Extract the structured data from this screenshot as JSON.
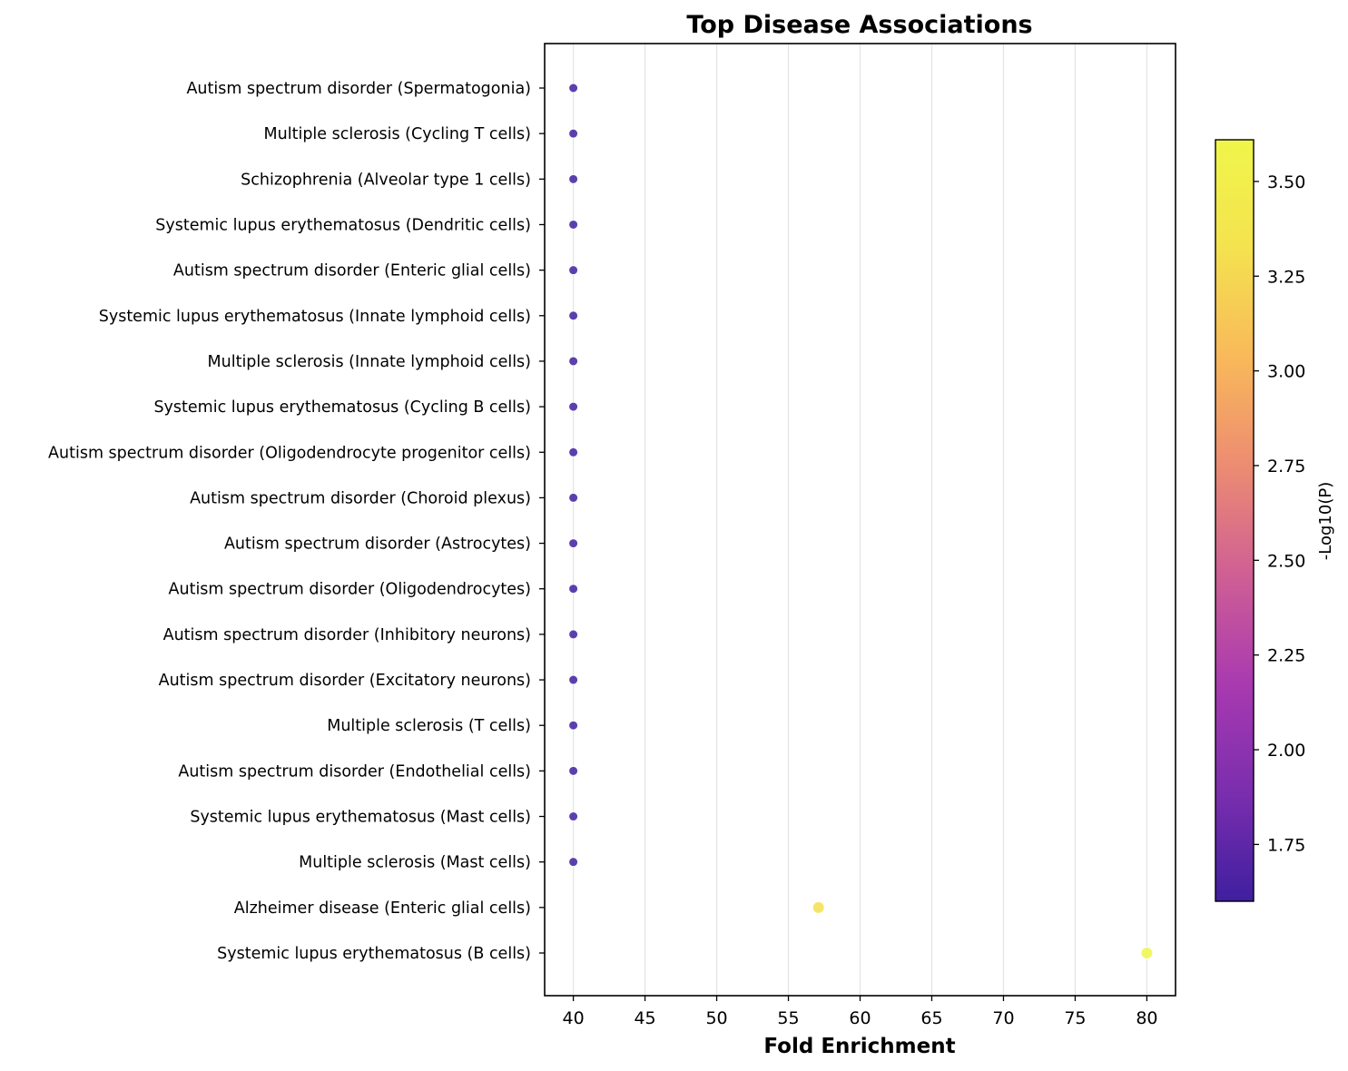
{
  "chart_data": {
    "type": "scatter",
    "title": "Top Disease Associations",
    "xlabel": "Fold Enrichment",
    "ylabel": "",
    "xlim": [
      38,
      82
    ],
    "xticks": [
      40,
      45,
      50,
      55,
      60,
      65,
      70,
      75,
      80
    ],
    "grid": "vertical",
    "colormap": "plasma",
    "colorbar": {
      "label": "-Log10(P)",
      "range": [
        1.6,
        3.61
      ],
      "ticks": [
        "1.75",
        "2.00",
        "2.25",
        "2.50",
        "2.75",
        "3.00",
        "3.25",
        "3.50"
      ],
      "gradient": [
        "#3f1fa0",
        "#7a2eae",
        "#a93ab0",
        "#cf5f94",
        "#ec8c72",
        "#f9b95a",
        "#f4e24f",
        "#f0f64a"
      ]
    },
    "points": [
      {
        "label": "Autism spectrum disorder (Spermatogonia)",
        "x": 40.0,
        "neglog10p": 1.6
      },
      {
        "label": "Multiple sclerosis (Cycling T cells)",
        "x": 40.0,
        "neglog10p": 1.6
      },
      {
        "label": "Schizophrenia (Alveolar type 1 cells)",
        "x": 40.0,
        "neglog10p": 1.6
      },
      {
        "label": "Systemic lupus erythematosus (Dendritic cells)",
        "x": 40.0,
        "neglog10p": 1.6
      },
      {
        "label": "Autism spectrum disorder (Enteric glial cells)",
        "x": 40.0,
        "neglog10p": 1.6
      },
      {
        "label": "Systemic lupus erythematosus (Innate lymphoid cells)",
        "x": 40.0,
        "neglog10p": 1.6
      },
      {
        "label": "Multiple sclerosis (Innate lymphoid cells)",
        "x": 40.0,
        "neglog10p": 1.6
      },
      {
        "label": "Systemic lupus erythematosus (Cycling B cells)",
        "x": 40.0,
        "neglog10p": 1.6
      },
      {
        "label": "Autism spectrum disorder (Oligodendrocyte progenitor cells)",
        "x": 40.0,
        "neglog10p": 1.6
      },
      {
        "label": "Autism spectrum disorder (Choroid plexus)",
        "x": 40.0,
        "neglog10p": 1.6
      },
      {
        "label": "Autism spectrum disorder (Astrocytes)",
        "x": 40.0,
        "neglog10p": 1.6
      },
      {
        "label": "Autism spectrum disorder (Oligodendrocytes)",
        "x": 40.0,
        "neglog10p": 1.6
      },
      {
        "label": "Autism spectrum disorder (Inhibitory neurons)",
        "x": 40.0,
        "neglog10p": 1.6
      },
      {
        "label": "Autism spectrum disorder (Excitatory neurons)",
        "x": 40.0,
        "neglog10p": 1.6
      },
      {
        "label": "Multiple sclerosis (T cells)",
        "x": 40.0,
        "neglog10p": 1.6
      },
      {
        "label": "Autism spectrum disorder (Endothelial cells)",
        "x": 40.0,
        "neglog10p": 1.6
      },
      {
        "label": "Systemic lupus erythematosus (Mast cells)",
        "x": 40.0,
        "neglog10p": 1.6
      },
      {
        "label": "Multiple sclerosis (Mast cells)",
        "x": 40.0,
        "neglog10p": 1.6
      },
      {
        "label": "Alzheimer disease (Enteric glial cells)",
        "x": 57.1,
        "neglog10p": 3.3
      },
      {
        "label": "Systemic lupus erythematosus (B cells)",
        "x": 80.0,
        "neglog10p": 3.61
      }
    ]
  }
}
